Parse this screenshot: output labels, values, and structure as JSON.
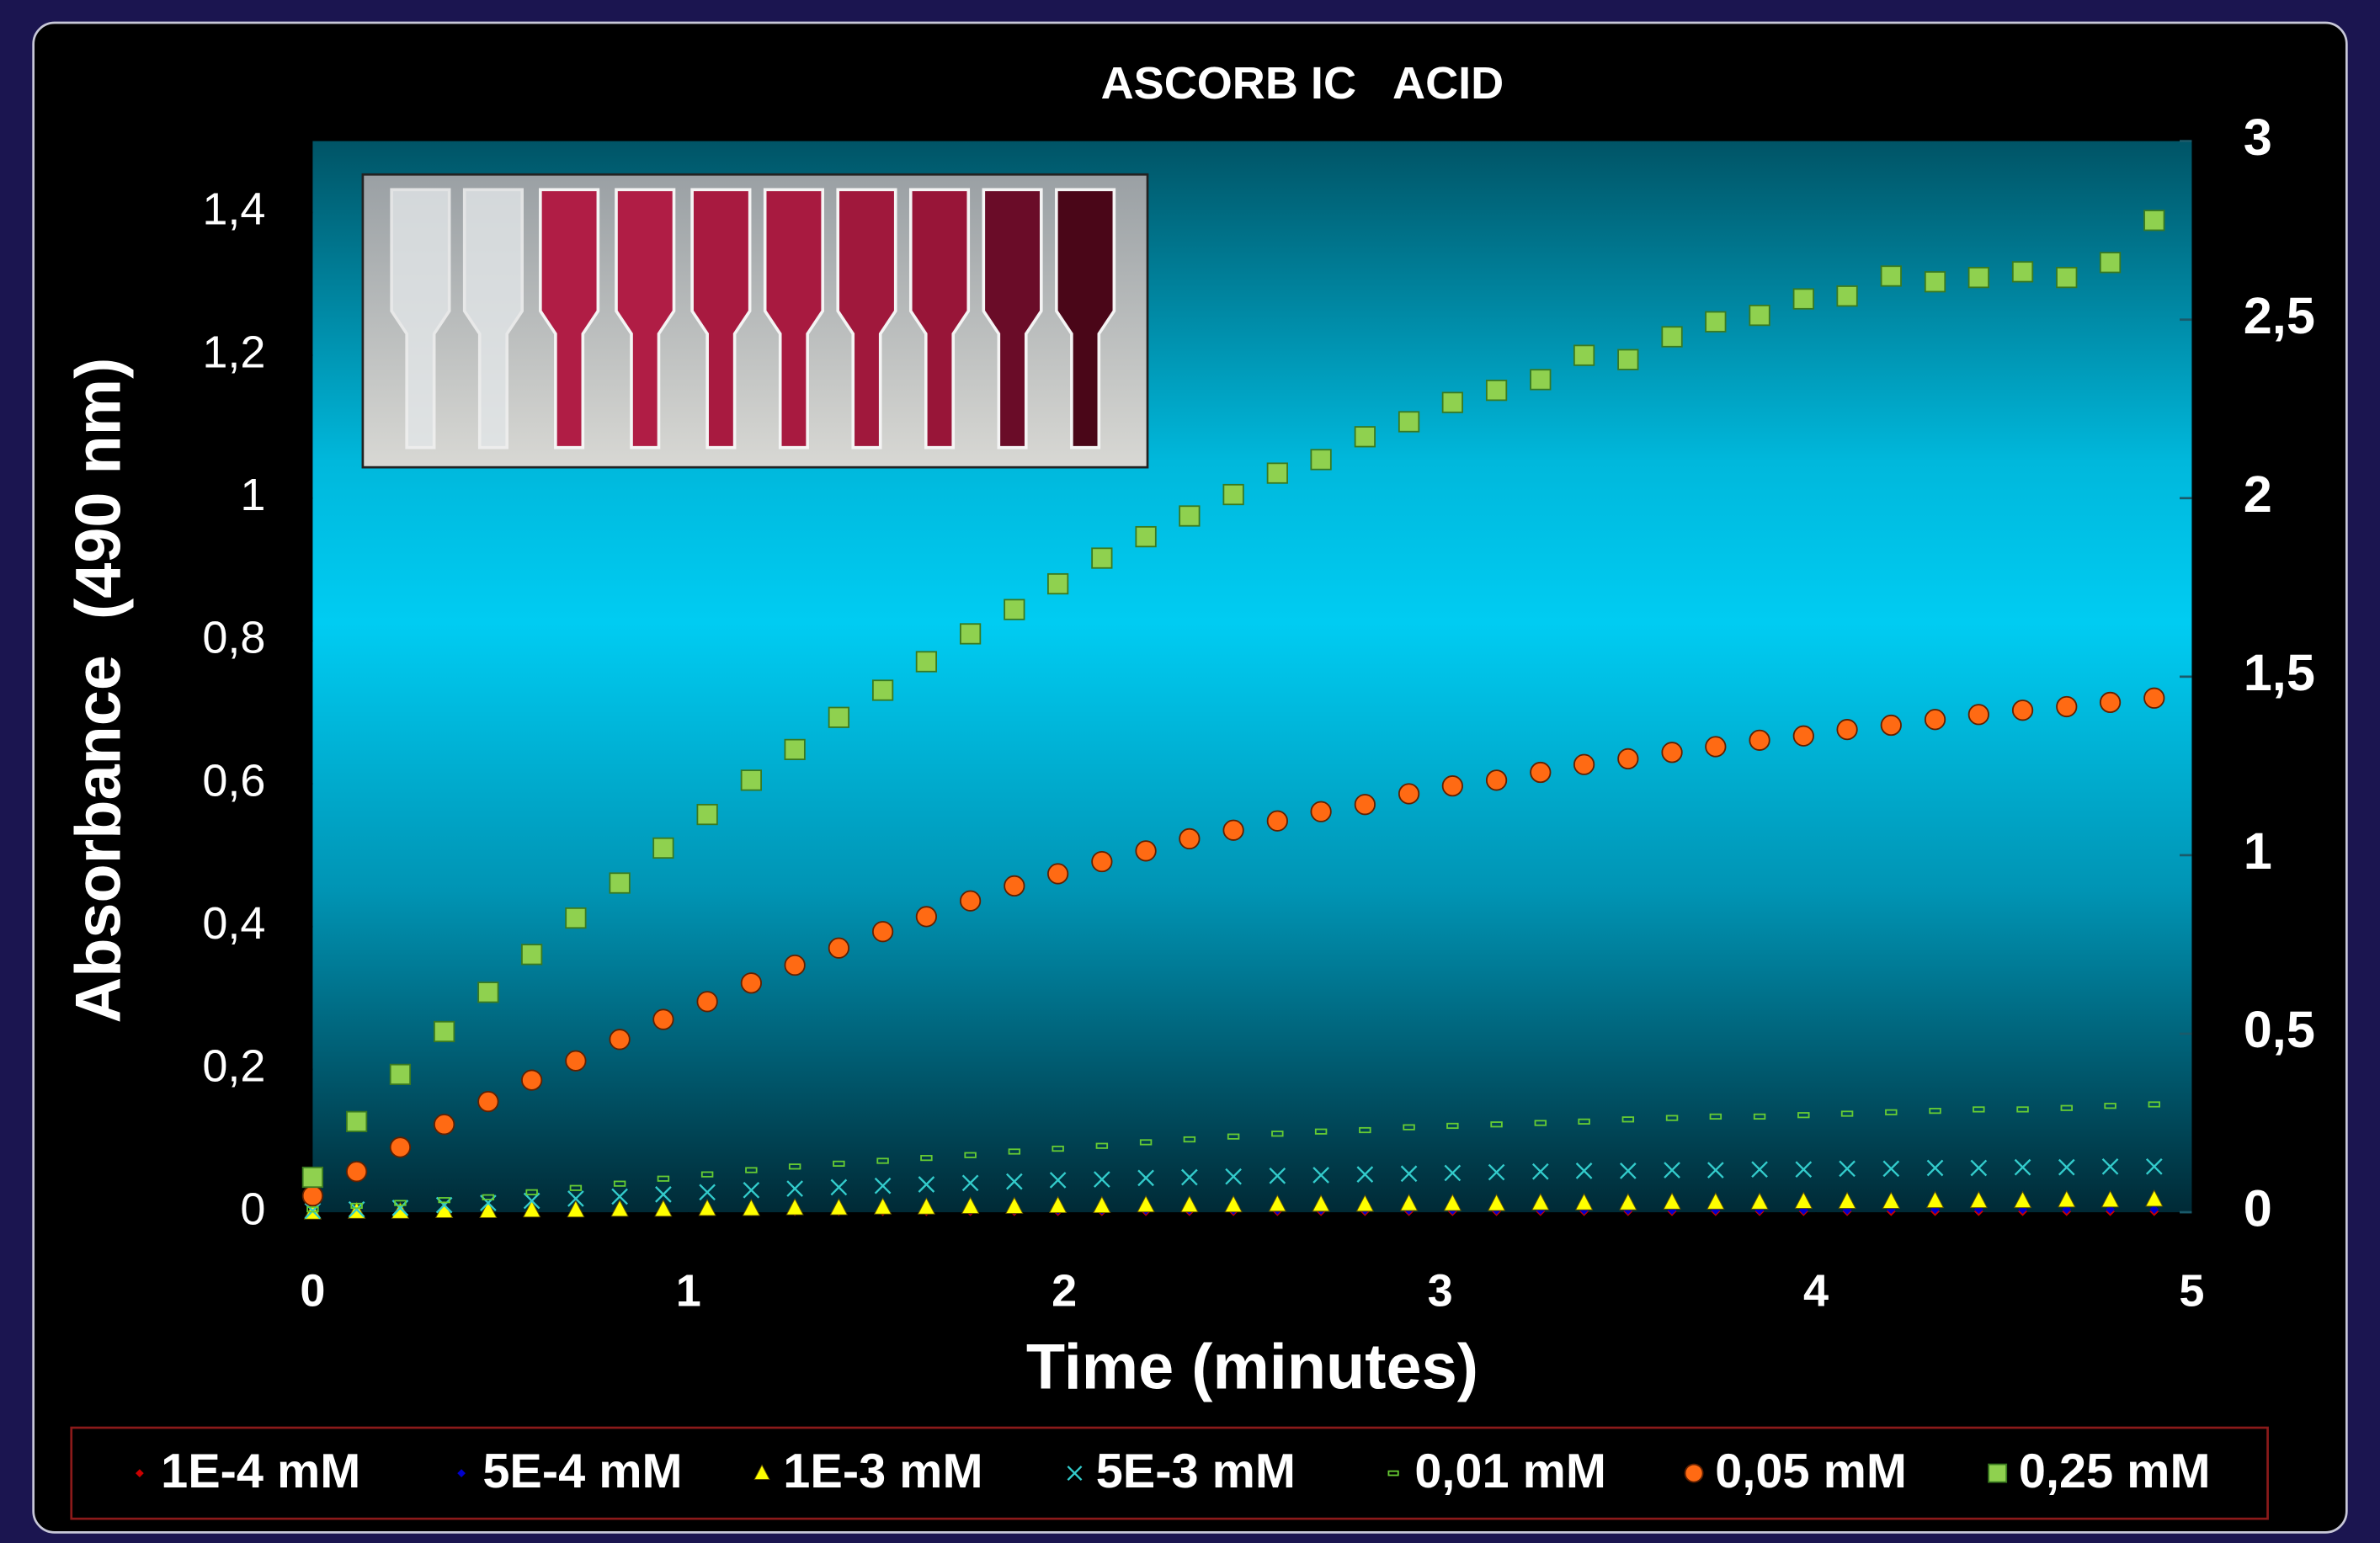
{
  "chart_data": {
    "type": "scatter",
    "title": "ASCORB IC   ACID",
    "x_label": "Time (minutes)",
    "y_label": "Absorbance  (490 nm)",
    "xlim": [
      0,
      5
    ],
    "xticks": [
      0,
      1,
      2,
      3,
      4,
      5
    ],
    "ylim": [
      0,
      1.5
    ],
    "yticks": [
      0,
      {
        "value": 0.2,
        "label": "0,2"
      },
      {
        "value": 0.4,
        "label": "0,4"
      },
      {
        "value": 0.6,
        "label": "0,6"
      },
      {
        "value": 0.8,
        "label": "0,8"
      },
      1,
      {
        "value": 1.2,
        "label": "1,2"
      },
      {
        "value": 1.4,
        "label": "1,4"
      }
    ],
    "y2lim": [
      0,
      3
    ],
    "y2ticks": [
      0,
      {
        "value": 0.5,
        "label": "0,5"
      },
      1,
      {
        "value": 1.5,
        "label": "1,5"
      },
      2,
      {
        "value": 2.5,
        "label": "2,5"
      },
      3
    ],
    "legend": "bottom",
    "x": [
      0,
      0.117,
      0.233,
      0.35,
      0.467,
      0.583,
      0.7,
      0.817,
      0.933,
      1.05,
      1.167,
      1.283,
      1.4,
      1.517,
      1.633,
      1.75,
      1.867,
      1.983,
      2.1,
      2.217,
      2.333,
      2.45,
      2.567,
      2.683,
      2.8,
      2.917,
      3.033,
      3.15,
      3.267,
      3.383,
      3.5,
      3.617,
      3.733,
      3.85,
      3.967,
      4.083,
      4.2,
      4.317,
      4.433,
      4.55,
      4.667,
      4.783,
      4.9
    ],
    "series": [
      {
        "name": "1E-4 mM",
        "color": "#cc0000",
        "marker": "diamond",
        "values": [
          0,
          0,
          0,
          0,
          0,
          0.001,
          0.001,
          0.001,
          0.001,
          0.001,
          0.001,
          0.001,
          0.001,
          0.001,
          0.001,
          0.001,
          0.001,
          0.001,
          0.001,
          0.001,
          0.001,
          0.001,
          0.001,
          0.001,
          0.001,
          0.001,
          0.001,
          0.001,
          0.001,
          0.001,
          0.001,
          0.001,
          0.001,
          0.001,
          0.001,
          0.001,
          0.001,
          0.001,
          0.001,
          0.001,
          0.001,
          0.001,
          0.001
        ]
      },
      {
        "name": "5E-4 mM",
        "color": "#0000cc",
        "marker": "diamond",
        "values": [
          0.001,
          0.001,
          0.001,
          0.002,
          0.002,
          0.002,
          0.002,
          0.002,
          0.002,
          0.002,
          0.002,
          0.002,
          0.002,
          0.003,
          0.003,
          0.003,
          0.003,
          0.003,
          0.003,
          0.003,
          0.003,
          0.003,
          0.003,
          0.003,
          0.003,
          0.003,
          0.003,
          0.003,
          0.003,
          0.003,
          0.003,
          0.003,
          0.003,
          0.003,
          0.003,
          0.003,
          0.004,
          0.004,
          0.004,
          0.004,
          0.004,
          0.004,
          0.004
        ]
      },
      {
        "name": "1E-3 mM",
        "color": "#ffff00",
        "marker": "triangle",
        "values": [
          0,
          0.001,
          0.001,
          0.002,
          0.002,
          0.003,
          0.003,
          0.004,
          0.004,
          0.005,
          0.005,
          0.006,
          0.006,
          0.007,
          0.007,
          0.008,
          0.008,
          0.009,
          0.009,
          0.01,
          0.01,
          0.01,
          0.011,
          0.011,
          0.011,
          0.012,
          0.012,
          0.012,
          0.013,
          0.013,
          0.013,
          0.014,
          0.014,
          0.014,
          0.015,
          0.015,
          0.015,
          0.016,
          0.016,
          0.016,
          0.017,
          0.017,
          0.018
        ]
      },
      {
        "name": "5E-3 mM",
        "color": "#33cccc",
        "marker": "x",
        "values": [
          0.002,
          0.004,
          0.006,
          0.01,
          0.013,
          0.016,
          0.019,
          0.022,
          0.025,
          0.028,
          0.031,
          0.033,
          0.035,
          0.037,
          0.039,
          0.041,
          0.043,
          0.045,
          0.046,
          0.048,
          0.049,
          0.05,
          0.051,
          0.052,
          0.053,
          0.054,
          0.055,
          0.056,
          0.057,
          0.058,
          0.058,
          0.059,
          0.059,
          0.06,
          0.06,
          0.061,
          0.061,
          0.062,
          0.062,
          0.063,
          0.063,
          0.064,
          0.064
        ]
      },
      {
        "name": "0,01 mM",
        "color": "#66cc33",
        "marker": "dash",
        "values": [
          0.004,
          0.009,
          0.013,
          0.017,
          0.021,
          0.028,
          0.034,
          0.04,
          0.047,
          0.053,
          0.059,
          0.064,
          0.068,
          0.072,
          0.076,
          0.08,
          0.085,
          0.089,
          0.093,
          0.098,
          0.102,
          0.106,
          0.11,
          0.113,
          0.115,
          0.119,
          0.121,
          0.123,
          0.125,
          0.127,
          0.13,
          0.132,
          0.134,
          0.134,
          0.136,
          0.138,
          0.14,
          0.142,
          0.144,
          0.144,
          0.146,
          0.149,
          0.151
        ]
      },
      {
        "name": "0,05 mM",
        "color": "#ff6a13",
        "marker": "circle",
        "values": [
          0.023,
          0.057,
          0.091,
          0.123,
          0.155,
          0.185,
          0.212,
          0.242,
          0.27,
          0.295,
          0.321,
          0.346,
          0.37,
          0.393,
          0.414,
          0.436,
          0.457,
          0.474,
          0.491,
          0.506,
          0.523,
          0.535,
          0.548,
          0.561,
          0.571,
          0.586,
          0.597,
          0.605,
          0.616,
          0.627,
          0.635,
          0.644,
          0.652,
          0.661,
          0.667,
          0.676,
          0.682,
          0.69,
          0.697,
          0.703,
          0.708,
          0.714,
          0.72
        ]
      },
      {
        "name": "0,25 mM",
        "color": "#8fd14f",
        "marker": "square",
        "values": [
          0.049,
          0.127,
          0.193,
          0.253,
          0.308,
          0.361,
          0.412,
          0.461,
          0.51,
          0.557,
          0.605,
          0.648,
          0.693,
          0.731,
          0.771,
          0.81,
          0.844,
          0.88,
          0.916,
          0.946,
          0.975,
          1.005,
          1.035,
          1.054,
          1.086,
          1.107,
          1.134,
          1.151,
          1.166,
          1.2,
          1.194,
          1.226,
          1.247,
          1.256,
          1.279,
          1.283,
          1.311,
          1.303,
          1.309,
          1.317,
          1.309,
          1.33,
          1.389
        ]
      }
    ]
  }
}
